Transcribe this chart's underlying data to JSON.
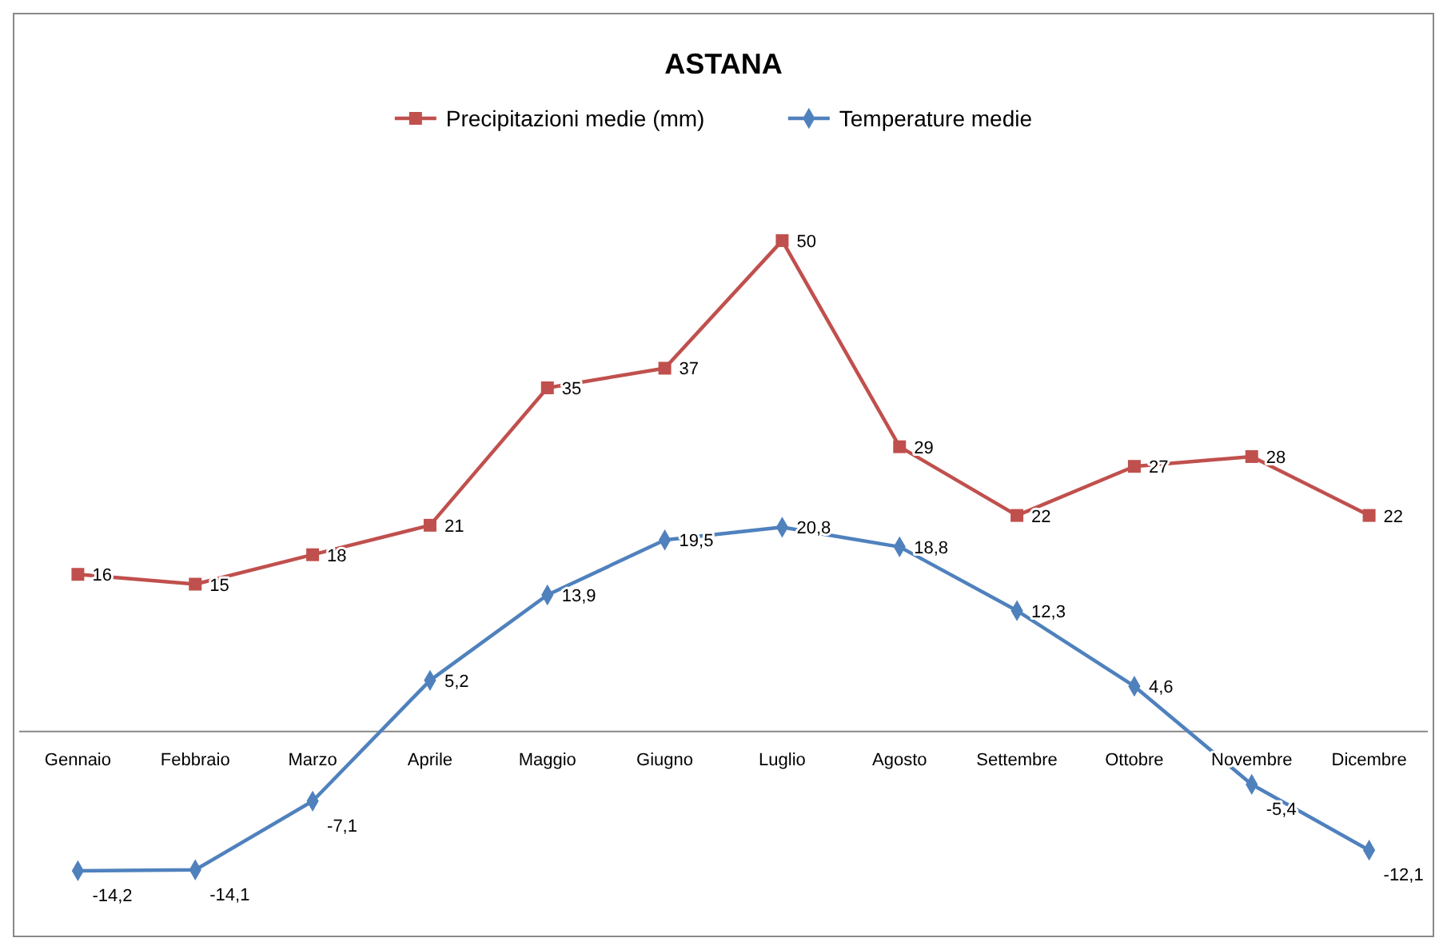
{
  "chart_data": {
    "type": "line",
    "title": "ASTANA",
    "categories": [
      "Gennaio",
      "Febbraio",
      "Marzo",
      "Aprile",
      "Maggio",
      "Giugno",
      "Luglio",
      "Agosto",
      "Settembre",
      "Ottobre",
      "Novembre",
      "Dicembre"
    ],
    "series": [
      {
        "name": "Precipitazioni medie (mm)",
        "color": "#c0504d",
        "marker": "square",
        "values": [
          16,
          15,
          18,
          21,
          35,
          37,
          50,
          29,
          22,
          27,
          28,
          22
        ],
        "value_labels": [
          "16",
          "15",
          "18",
          "21",
          "35",
          "37",
          "50",
          "29",
          "22",
          "27",
          "28",
          "22"
        ]
      },
      {
        "name": "Temperature medie",
        "color": "#4f81bd",
        "marker": "diamond",
        "values": [
          -14.2,
          -14.1,
          -7.1,
          5.2,
          13.9,
          19.5,
          20.8,
          18.8,
          12.3,
          4.6,
          -5.4,
          -12.1
        ],
        "value_labels": [
          "-14,2",
          "-14,1",
          "-7,1",
          "5,2",
          "13,9",
          "19,5",
          "20,8",
          "18,8",
          "12,3",
          "4,6",
          "-5,4",
          "-12,1"
        ]
      }
    ],
    "legend": "top",
    "line_style": "solid"
  }
}
